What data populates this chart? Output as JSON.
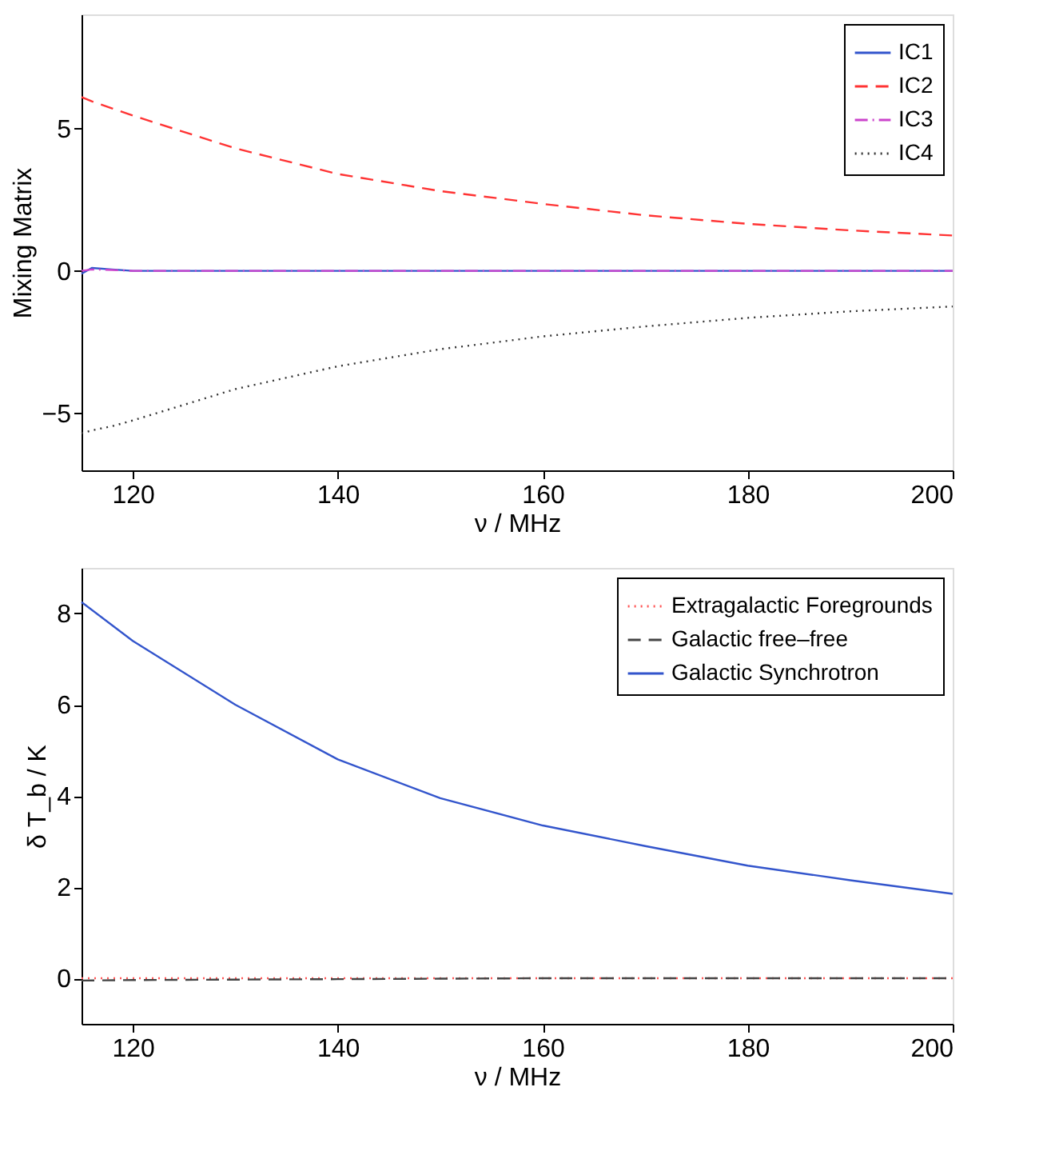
{
  "chart_data": [
    {
      "type": "line",
      "xlabel": "ν / MHz",
      "ylabel": "Mixing Matrix",
      "xlim": [
        115,
        200
      ],
      "xticks": [
        120,
        140,
        160,
        180,
        200
      ],
      "ylim": [
        -7,
        9
      ],
      "yticks": [
        -5,
        0,
        5
      ],
      "grid": false,
      "legend": "top right",
      "marker": "none",
      "x": [
        115,
        116,
        118,
        120,
        130,
        140,
        150,
        160,
        170,
        180,
        190,
        200
      ],
      "series": [
        {
          "name": "IC1",
          "color": "#3355cc",
          "line_style": "solid",
          "values": [
            -0.1,
            0.1,
            0.05,
            0,
            0,
            0,
            0,
            0,
            0,
            0,
            0,
            0
          ]
        },
        {
          "name": "IC2",
          "color": "#ff3333",
          "line_style": "dashed",
          "values": [
            6.1,
            5.95,
            5.7,
            5.45,
            4.3,
            3.4,
            2.8,
            2.35,
            1.95,
            1.65,
            1.42,
            1.24
          ]
        },
        {
          "name": "IC3",
          "color": "#cc44cc",
          "line_style": "dashdot",
          "values": [
            0,
            0.05,
            0.03,
            0,
            0,
            0,
            0,
            0,
            0,
            0,
            0,
            0
          ]
        },
        {
          "name": "IC4",
          "color": "#333333",
          "line_style": "dotted",
          "values": [
            -5.7,
            -5.6,
            -5.45,
            -5.25,
            -4.15,
            -3.35,
            -2.75,
            -2.3,
            -1.95,
            -1.65,
            -1.42,
            -1.25
          ]
        }
      ]
    },
    {
      "type": "line",
      "xlabel": "ν / MHz",
      "ylabel": "δ T_b / K",
      "xlim": [
        115,
        200
      ],
      "xticks": [
        120,
        140,
        160,
        180,
        200
      ],
      "ylim": [
        -1,
        9
      ],
      "yticks": [
        0,
        2,
        4,
        6,
        8
      ],
      "grid": false,
      "legend": "top right",
      "marker": "none",
      "x": [
        115,
        120,
        130,
        140,
        150,
        160,
        170,
        180,
        190,
        200
      ],
      "series": [
        {
          "name": "Extragalactic Foregrounds",
          "color": "#ff5555",
          "line_style": "dotted",
          "values": [
            0,
            0,
            0,
            0,
            0,
            0,
            0,
            0,
            0,
            0
          ]
        },
        {
          "name": "Galactic free–free",
          "color": "#444444",
          "line_style": "dashed",
          "values": [
            -0.05,
            -0.04,
            -0.03,
            -0.02,
            -0.01,
            0,
            0,
            0,
            0,
            0
          ]
        },
        {
          "name": "Galactic Synchrotron",
          "color": "#3355cc",
          "line_style": "solid",
          "values": [
            8.25,
            7.4,
            6.0,
            4.8,
            3.95,
            3.35,
            2.9,
            2.47,
            2.15,
            1.85
          ]
        }
      ]
    }
  ]
}
